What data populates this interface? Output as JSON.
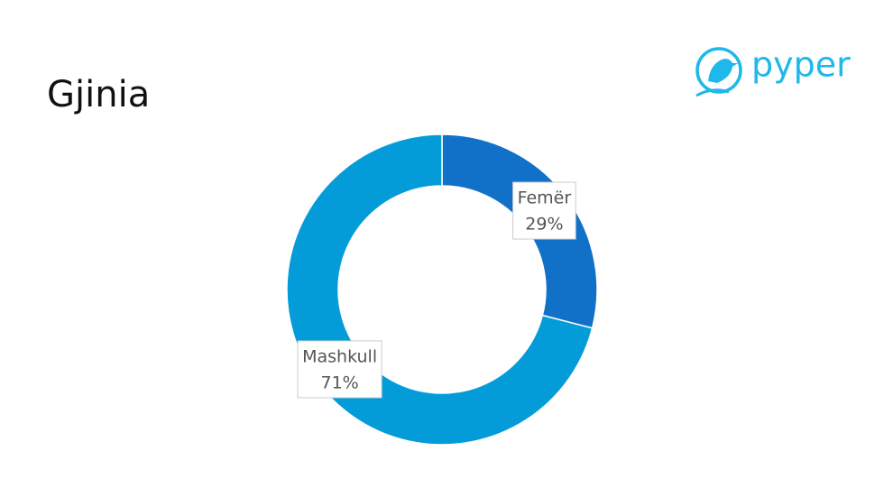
{
  "chart_data": {
    "type": "pie",
    "title": "Gjinia",
    "donut": true,
    "categories": [
      "Femër",
      "Mashkull"
    ],
    "values": [
      29,
      71
    ],
    "value_labels": [
      "29%",
      "71%"
    ],
    "colors": [
      "#1170c8",
      "#039cd9"
    ]
  },
  "logo": {
    "text": "pyper"
  }
}
